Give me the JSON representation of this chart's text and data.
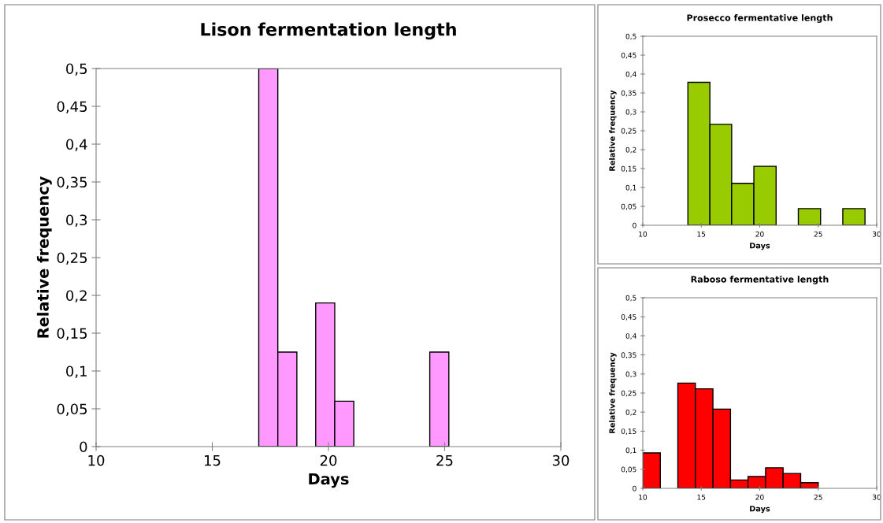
{
  "chart_data": [
    {
      "type": "histogram",
      "title": "Lison fermentation length",
      "xlabel": "Days",
      "ylabel": "Relative frequency",
      "color": "#ff99ff",
      "bins": [
        17,
        17.82,
        18.64,
        19.45,
        20.27,
        21.09,
        21.91,
        22.73,
        23.55,
        24.36,
        25.18,
        26
      ],
      "values": [
        0.5,
        0.125,
        0,
        0.19,
        0.06,
        0,
        0,
        0,
        0,
        0.125,
        0
      ],
      "xlim": [
        10,
        30
      ],
      "xticks": [
        10,
        15,
        20,
        25,
        30
      ],
      "ylim": [
        0,
        0.5
      ],
      "yticks": [
        0,
        {
          "value": 0.05,
          "label": "0,05"
        },
        {
          "value": 0.1,
          "label": "0,1"
        },
        {
          "value": 0.15,
          "label": "0,15"
        },
        {
          "value": 0.2,
          "label": "0,2"
        },
        {
          "value": 0.25,
          "label": "0,25"
        },
        {
          "value": 0.3,
          "label": "0,3"
        },
        {
          "value": 0.35,
          "label": "0,35"
        },
        {
          "value": 0.4,
          "label": "0,4"
        },
        {
          "value": 0.45,
          "label": "0,45"
        },
        {
          "value": 0.5,
          "label": "0,5"
        }
      ]
    },
    {
      "type": "histogram",
      "title": "Prosecco fermentative length",
      "xlabel": "Days",
      "ylabel": "Relative frequency",
      "color": "#99cc00",
      "bins": [
        13.86,
        15.74,
        17.6,
        19.5,
        21.4,
        23.3,
        25.2,
        27.1,
        29.0
      ],
      "values": [
        0.378,
        0.267,
        0.111,
        0.156,
        0,
        0.044,
        0,
        0.044
      ],
      "xlim": [
        10,
        30
      ],
      "xticks": [
        10,
        15,
        20,
        25,
        30
      ],
      "ylim": [
        0,
        0.5
      ],
      "yticks": [
        0,
        {
          "value": 0.05,
          "label": "0,05"
        },
        {
          "value": 0.1,
          "label": "0,1"
        },
        {
          "value": 0.15,
          "label": "0,15"
        },
        {
          "value": 0.2,
          "label": "0,2"
        },
        {
          "value": 0.25,
          "label": "0,25"
        },
        {
          "value": 0.3,
          "label": "0,3"
        },
        {
          "value": 0.35,
          "label": "0,35"
        },
        {
          "value": 0.4,
          "label": "0,4"
        },
        {
          "value": 0.45,
          "label": "0,45"
        },
        {
          "value": 0.5,
          "label": "0,5"
        }
      ]
    },
    {
      "type": "histogram",
      "title": "Raboso fermentative length",
      "xlabel": "Days",
      "ylabel": "Relative frequency",
      "color": "#ff0000",
      "bins": [
        10,
        11.5,
        13,
        14.5,
        16,
        17.5,
        19,
        20.5,
        22,
        23.5,
        25
      ],
      "values": [
        0.093,
        0,
        0.276,
        0.261,
        0.208,
        0.022,
        0.031,
        0.054,
        0.039,
        0.015
      ],
      "xlim": [
        10,
        30
      ],
      "xticks": [
        10,
        15,
        20,
        25,
        30
      ],
      "ylim": [
        0,
        0.5
      ],
      "yticks": [
        0,
        {
          "value": 0.05,
          "label": "0,05"
        },
        {
          "value": 0.1,
          "label": "0,1"
        },
        {
          "value": 0.15,
          "label": "0,15"
        },
        {
          "value": 0.2,
          "label": "0,2"
        },
        {
          "value": 0.25,
          "label": "0,25"
        },
        {
          "value": 0.3,
          "label": "0,3"
        },
        {
          "value": 0.35,
          "label": "0,35"
        },
        {
          "value": 0.4,
          "label": "0,4"
        },
        {
          "value": 0.45,
          "label": "0,45"
        },
        {
          "value": 0.5,
          "label": "0,5"
        }
      ]
    }
  ]
}
